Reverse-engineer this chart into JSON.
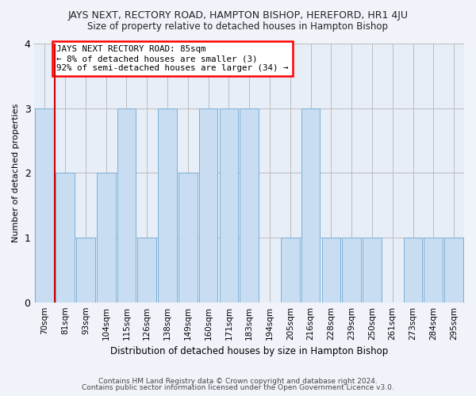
{
  "title": "JAYS NEXT, RECTORY ROAD, HAMPTON BISHOP, HEREFORD, HR1 4JU",
  "subtitle": "Size of property relative to detached houses in Hampton Bishop",
  "xlabel": "Distribution of detached houses by size in Hampton Bishop",
  "ylabel": "Number of detached properties",
  "categories": [
    "70sqm",
    "81sqm",
    "93sqm",
    "104sqm",
    "115sqm",
    "126sqm",
    "138sqm",
    "149sqm",
    "160sqm",
    "171sqm",
    "183sqm",
    "194sqm",
    "205sqm",
    "216sqm",
    "228sqm",
    "239sqm",
    "250sqm",
    "261sqm",
    "273sqm",
    "284sqm",
    "295sqm"
  ],
  "values": [
    3,
    2,
    1,
    2,
    3,
    1,
    3,
    2,
    3,
    3,
    3,
    0,
    1,
    3,
    1,
    1,
    1,
    0,
    1,
    1,
    1
  ],
  "bar_color": "#c9ddf2",
  "bar_edge_color": "#7aafd4",
  "highlight_color": "#cc0000",
  "annotation_text": "JAYS NEXT RECTORY ROAD: 85sqm\n← 8% of detached houses are smaller (3)\n92% of semi-detached houses are larger (34) →",
  "ylim": [
    0,
    4
  ],
  "yticks": [
    0,
    1,
    2,
    3,
    4
  ],
  "footer1": "Contains HM Land Registry data © Crown copyright and database right 2024.",
  "footer2": "Contains public sector information licensed under the Open Government Licence v3.0.",
  "bg_color": "#f0f4fa",
  "plot_bg_color": "#e8eef8"
}
